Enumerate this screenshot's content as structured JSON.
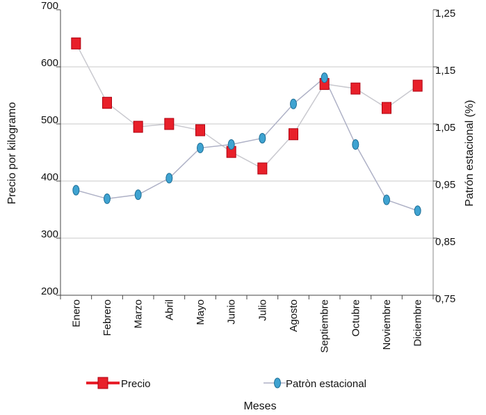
{
  "chart_data": {
    "type": "line",
    "categories": [
      "Enero",
      "Febrero",
      "Marzo",
      "Abril",
      "Mayo",
      "Junio",
      "Julio",
      "Agosto",
      "Septiembre",
      "Octubre",
      "Noviembre",
      "Diciembre"
    ],
    "series": [
      {
        "name": "Precio",
        "axis": "left",
        "color": "#e8202a",
        "marker": "square",
        "values": [
          641,
          537,
          495,
          500,
          489,
          451,
          422,
          482,
          570,
          562,
          528,
          567
        ]
      },
      {
        "name": "Patròn estacional",
        "axis": "right",
        "color": "#3fa3d1",
        "line_color": "#aeb1c6",
        "marker": "ellipse",
        "values": [
          0.934,
          0.919,
          0.926,
          0.955,
          1.008,
          1.014,
          1.025,
          1.085,
          1.131,
          1.014,
          0.917,
          0.898
        ]
      }
    ],
    "left_axis": {
      "label": "Precio por kilogramo",
      "min": 200,
      "max": 700,
      "ticks": [
        "700",
        "600",
        "500",
        "400",
        "300",
        "200"
      ]
    },
    "right_axis": {
      "label": "Patrón estacional (%)",
      "min": 0.75,
      "max": 1.25,
      "ticks": [
        "1,25",
        "1,15",
        "1,05",
        "0,95",
        "0,85",
        "0,75"
      ]
    },
    "xlabel": "Meses",
    "grid": true,
    "legend_position": "bottom"
  }
}
